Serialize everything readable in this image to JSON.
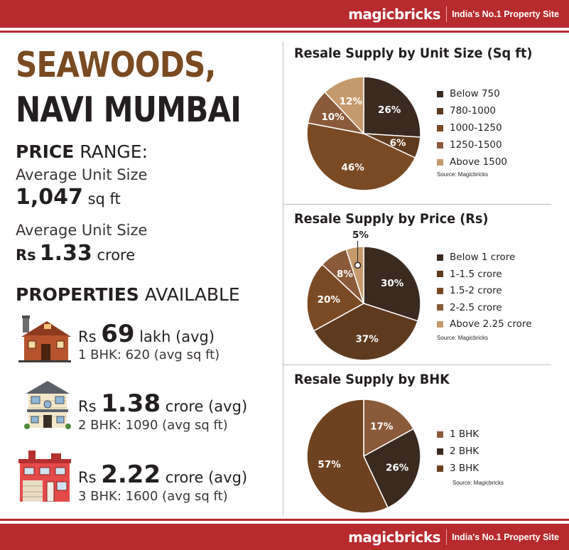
{
  "header": {
    "brand": "magicbricks",
    "tagline": "India's No.1 Property Site"
  },
  "footer": {
    "brand": "magicbricks",
    "tagline": "India's No.1 Property Site"
  },
  "colors": {
    "brand_red": "#b72a2d",
    "title_brown": "#7a4a22",
    "dark": "#231f20"
  },
  "left": {
    "title_line1": "SEAWOODS,",
    "title_line2": "NAVI MUMBAI",
    "price_range": {
      "bold": "PRICE",
      "rest": " RANGE:"
    },
    "unit_size": {
      "label": "Average Unit Size",
      "value": "1,047",
      "unit": " sq ft"
    },
    "price": {
      "label": "Average Unit Size",
      "prefix": "Rs",
      "value": "1.33",
      "unit": " crore"
    },
    "properties_head": {
      "bold": "PROPERTIES",
      "rest": " AVAILABLE"
    },
    "properties": [
      {
        "icon": "brick-house-icon",
        "prefix": "Rs ",
        "value": "69",
        "unit": " lakh (avg)",
        "sub": "1 BHK: 620 (avg sq ft)"
      },
      {
        "icon": "two-storey-house-icon",
        "prefix": "Rs ",
        "value": "1.38",
        "unit": " crore (avg)",
        "sub": "2 BHK: 1090 (avg sq ft)"
      },
      {
        "icon": "red-building-icon",
        "prefix": "Rs ",
        "value": "2.22",
        "unit": " crore (avg)",
        "sub": "3 BHK: 1600 (avg sq ft)"
      }
    ]
  },
  "chart_data": [
    {
      "type": "pie",
      "title": "Resale Supply by Unit Size (Sq ft)",
      "source": "Source: Magicbricks",
      "legend_position": "right",
      "categories": [
        "Below 750",
        "780-1000",
        "1000-1250",
        "1250-1500",
        "Above 1500"
      ],
      "values": [
        26,
        6,
        46,
        10,
        12
      ],
      "labels": [
        "26%",
        "6%",
        "46%",
        "10%",
        "12%"
      ],
      "colors": [
        "#3b2a20",
        "#5e3a1f",
        "#7a4a25",
        "#8a5a3a",
        "#c49a6c"
      ]
    },
    {
      "type": "pie",
      "title": "Resale Supply by Price (Rs)",
      "source": "Source: Magicbricks",
      "legend_position": "right",
      "categories": [
        "Below 1 crore",
        "1-1.5 crore",
        "1.5-2 crore",
        "2-2.5 crore",
        "Above 2.25 crore"
      ],
      "values": [
        30,
        37,
        20,
        8,
        5
      ],
      "labels": [
        "30%",
        "37%",
        "20%",
        "8%",
        "5%"
      ],
      "colors": [
        "#3b2a20",
        "#5e3a1f",
        "#7a4a25",
        "#8a5a3a",
        "#c49a6c"
      ]
    },
    {
      "type": "pie",
      "title": "Resale Supply by BHK",
      "source": "Source: Magicbricks",
      "legend_position": "right",
      "categories": [
        "1 BHK",
        "2 BHK",
        "3 BHK"
      ],
      "values": [
        17,
        26,
        57
      ],
      "labels": [
        "17%",
        "26%",
        "57%"
      ],
      "colors": [
        "#8a5a3a",
        "#3b2a20",
        "#6e4220"
      ]
    }
  ]
}
